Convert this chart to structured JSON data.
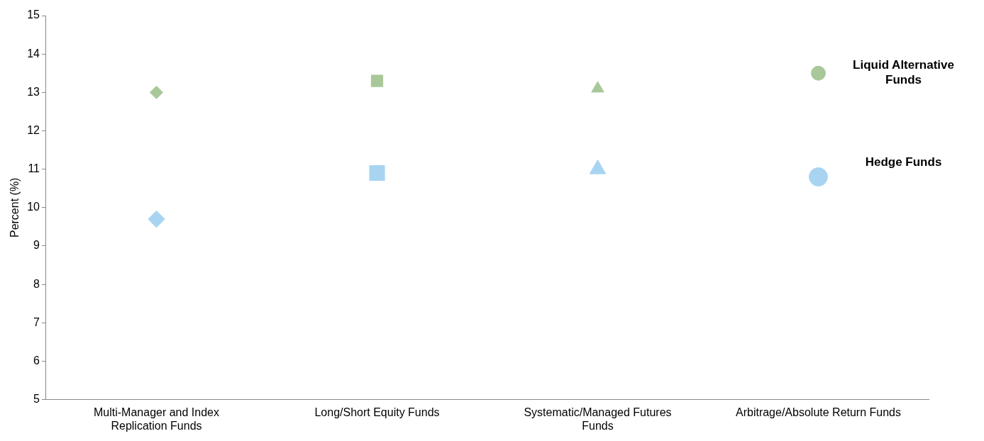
{
  "chart_data": {
    "type": "scatter",
    "ylabel": "Percent (%)",
    "categories": [
      "Multi-Manager and Index Replication Funds",
      "Long/Short Equity Funds",
      "Systematic/Managed Futures Funds",
      "Arbitrage/Absolute Return Funds"
    ],
    "series": [
      {
        "name": "Liquid Alternative Funds",
        "color": "#a9c89a",
        "values": [
          13.0,
          13.3,
          13.1,
          13.5
        ],
        "marker": [
          "diamond",
          "square",
          "triangle",
          "circle"
        ]
      },
      {
        "name": "Hedge Funds",
        "color": "#a8d4f2",
        "values": [
          9.7,
          10.9,
          11.0,
          10.8
        ],
        "marker": [
          "diamond",
          "square",
          "triangle",
          "circle"
        ]
      }
    ],
    "ylim": [
      5,
      15
    ],
    "yticks": [
      5,
      6,
      7,
      8,
      9,
      10,
      11,
      12,
      13,
      14,
      15
    ],
    "grid": false,
    "legend": false
  }
}
